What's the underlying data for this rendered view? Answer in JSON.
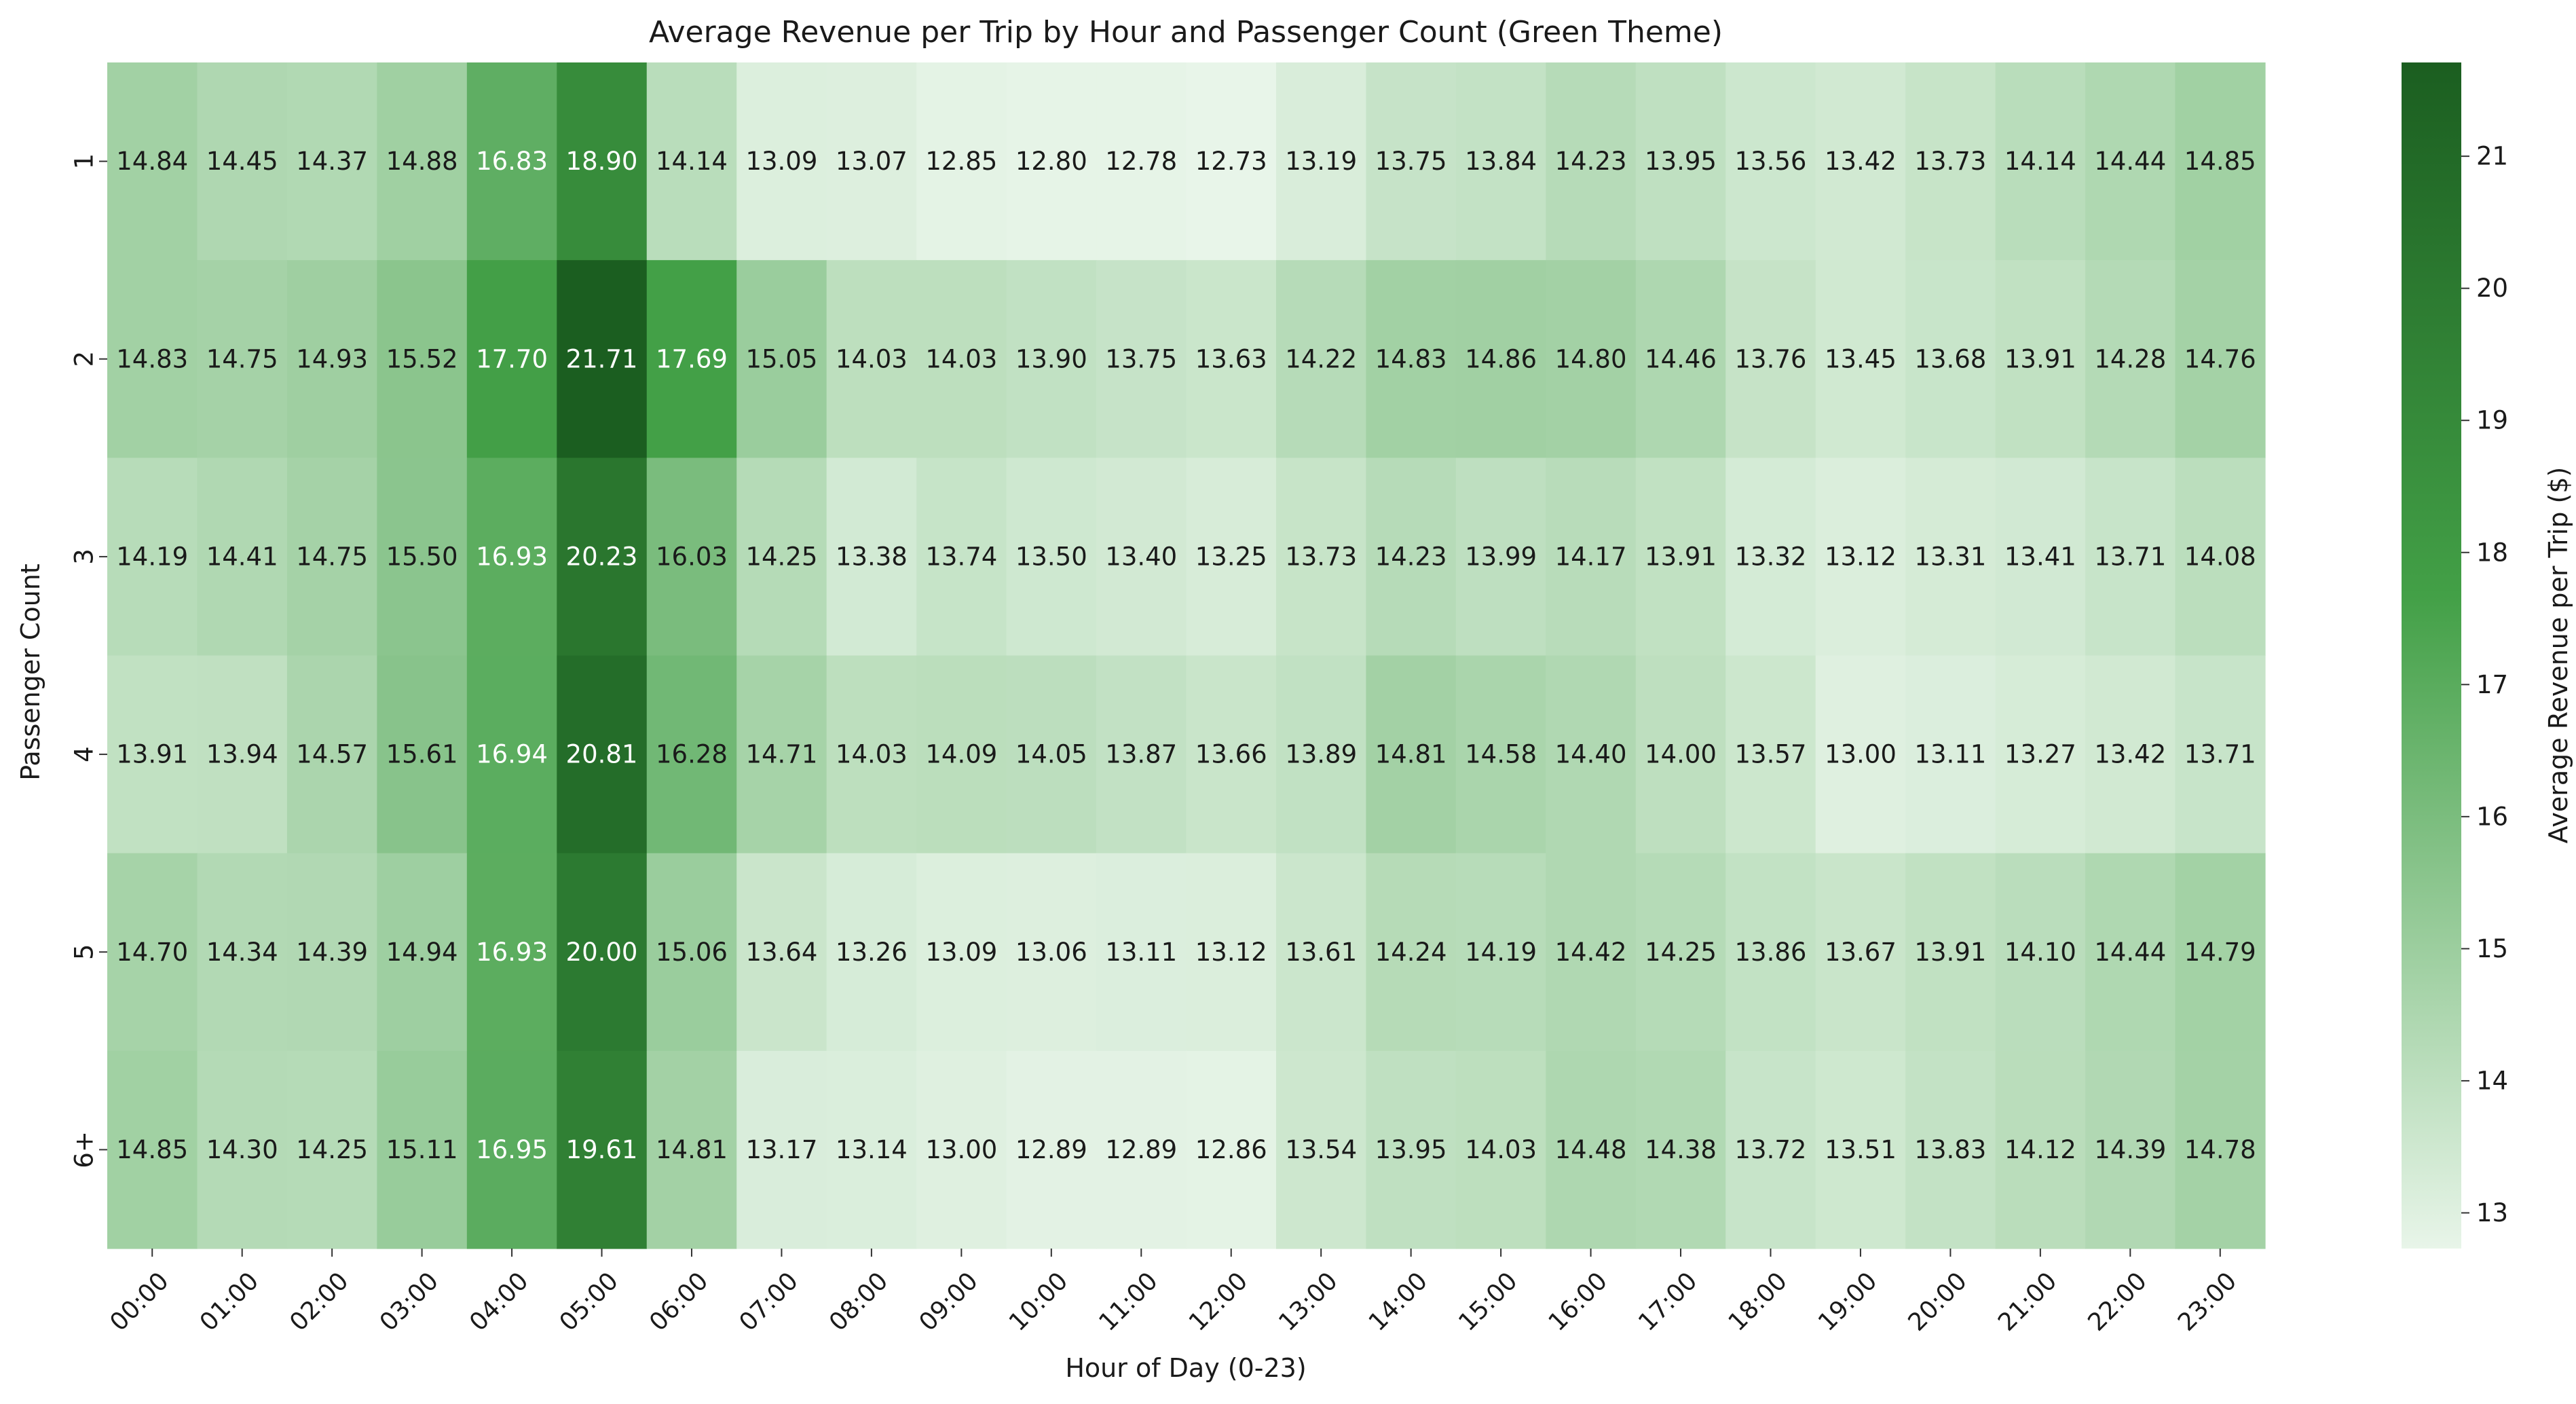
{
  "chart_data": {
    "type": "heatmap",
    "title": "Average Revenue per Trip by Hour and Passenger Count (Green Theme)",
    "xlabel": "Hour of Day (0-23)",
    "ylabel": "Passenger Count",
    "x": [
      "00:00",
      "01:00",
      "02:00",
      "03:00",
      "04:00",
      "05:00",
      "06:00",
      "07:00",
      "08:00",
      "09:00",
      "10:00",
      "11:00",
      "12:00",
      "13:00",
      "14:00",
      "15:00",
      "16:00",
      "17:00",
      "18:00",
      "19:00",
      "20:00",
      "21:00",
      "22:00",
      "23:00"
    ],
    "y": [
      "1",
      "2",
      "3",
      "4",
      "5",
      "6+"
    ],
    "values": [
      [
        14.84,
        14.45,
        14.37,
        14.88,
        16.83,
        18.9,
        14.14,
        13.09,
        13.07,
        12.85,
        12.8,
        12.78,
        12.73,
        13.19,
        13.75,
        13.84,
        14.23,
        13.95,
        13.56,
        13.42,
        13.73,
        14.14,
        14.44,
        14.85
      ],
      [
        14.83,
        14.75,
        14.93,
        15.52,
        17.7,
        21.71,
        17.69,
        15.05,
        14.03,
        14.03,
        13.9,
        13.75,
        13.63,
        14.22,
        14.83,
        14.86,
        14.8,
        14.46,
        13.76,
        13.45,
        13.68,
        13.91,
        14.28,
        14.76
      ],
      [
        14.19,
        14.41,
        14.75,
        15.5,
        16.93,
        20.23,
        16.03,
        14.25,
        13.38,
        13.74,
        13.5,
        13.4,
        13.25,
        13.73,
        14.23,
        13.99,
        14.17,
        13.91,
        13.32,
        13.12,
        13.31,
        13.41,
        13.71,
        14.08
      ],
      [
        13.91,
        13.94,
        14.57,
        15.61,
        16.94,
        20.81,
        16.28,
        14.71,
        14.03,
        14.09,
        14.05,
        13.87,
        13.66,
        13.89,
        14.81,
        14.58,
        14.4,
        14.0,
        13.57,
        13.0,
        13.11,
        13.27,
        13.42,
        13.71
      ],
      [
        14.7,
        14.34,
        14.39,
        14.94,
        16.93,
        20.0,
        15.06,
        13.64,
        13.26,
        13.09,
        13.06,
        13.11,
        13.12,
        13.61,
        14.24,
        14.19,
        14.42,
        14.25,
        13.86,
        13.67,
        13.91,
        14.1,
        14.44,
        14.79
      ],
      [
        14.85,
        14.3,
        14.25,
        15.11,
        16.95,
        19.61,
        14.81,
        13.17,
        13.14,
        13.0,
        12.89,
        12.89,
        12.86,
        13.54,
        13.95,
        14.03,
        14.48,
        14.38,
        13.72,
        13.51,
        13.83,
        14.12,
        14.39,
        14.78
      ]
    ],
    "colorbar": {
      "label": "Average Revenue per Trip ($)",
      "range": [
        12.73,
        21.71
      ],
      "ticks": [
        13,
        14,
        15,
        16,
        17,
        18,
        19,
        20,
        21
      ],
      "color_low": "#e8f5e9",
      "color_mid": "#43a047",
      "color_high": "#1b5e20"
    },
    "grid": false,
    "cell_annotations": true
  }
}
